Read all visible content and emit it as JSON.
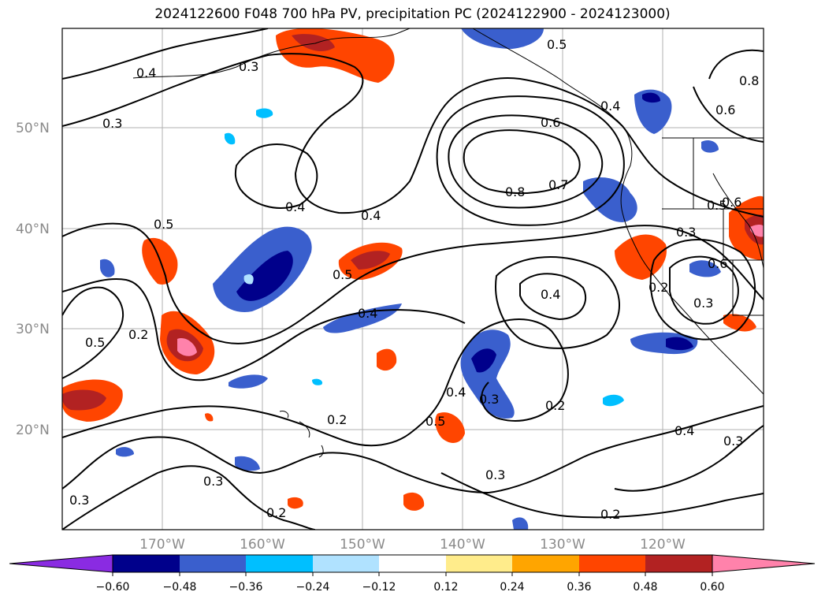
{
  "title": "2024122600 F048 700 hPa PV, precipitation PC (2024122900 - 2024123000)",
  "lat_labels": [
    "50°N",
    "40°N",
    "30°N",
    "20°N"
  ],
  "lon_labels": [
    "170°W",
    "160°W",
    "150°W",
    "140°W",
    "130°W",
    "120°W"
  ],
  "contour_labels": [
    "0.4",
    "0.3",
    "0.5",
    "0.6",
    "0.6",
    "0.8",
    "0.7",
    "0.4",
    "0.4",
    "0.5",
    "0.4",
    "0.4",
    "0.2",
    "0.5",
    "0.4",
    "0.3",
    "0.2",
    "0.5",
    "0.2",
    "0.3",
    "0.2",
    "0.3",
    "0.2",
    "0.4",
    "0.3",
    "0.3",
    "0.3",
    "0.4",
    "0.5",
    "0.6",
    "0.8",
    "0.6",
    "0.5",
    "0.3",
    "0.3",
    "0.2"
  ],
  "colorbar": {
    "ticks": [
      "−0.60",
      "−0.48",
      "−0.36",
      "−0.24",
      "−0.12",
      "0.12",
      "0.24",
      "0.36",
      "0.48",
      "0.60"
    ],
    "colors": [
      "#8a2be2",
      "#00008b",
      "#3a5fcd",
      "#00bfff",
      "#b0e2ff",
      "#ffffff",
      "#ffec8b",
      "#ffa500",
      "#ff4500",
      "#b22222",
      "#ff82ab"
    ]
  },
  "map": {
    "extent": "180°W–110°W, 10°N–60°N",
    "variable": "700 hPa PV contours, precipitation PC shading"
  }
}
